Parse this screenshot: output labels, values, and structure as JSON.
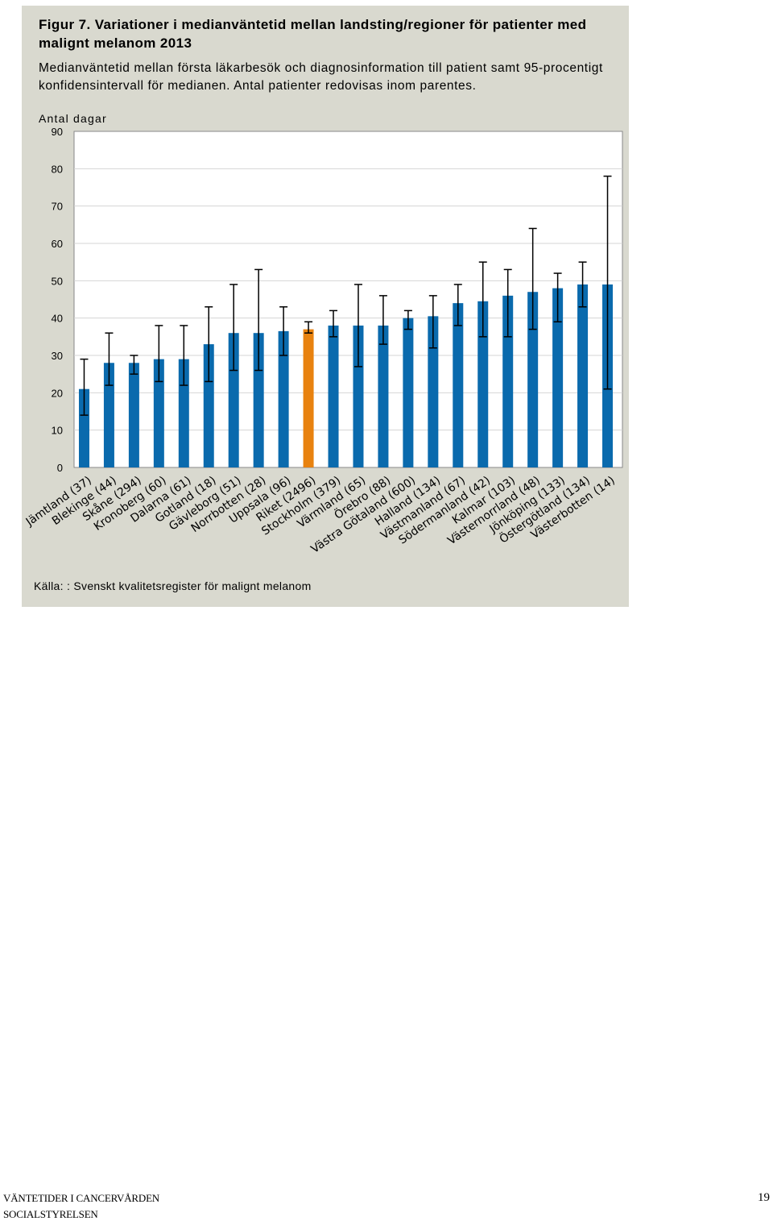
{
  "figure": {
    "title": "Figur 7. Variationer i medianväntetid mellan landsting/regioner för patienter med malignt melanom 2013",
    "subtitle": "Medianväntetid mellan första läkarbesök och diagnosinformation till patient samt 95-procentigt konfidensintervall för medianen. Antal patienter redovisas inom parentes.",
    "source": "Källa: : Svenskt kvalitetsregister för malignt melanom"
  },
  "chart_data": {
    "type": "bar",
    "title": "",
    "xlabel": "",
    "ylabel": "Antal dagar",
    "ylim": [
      0,
      90
    ],
    "yticks": [
      0,
      10,
      20,
      30,
      40,
      50,
      60,
      70,
      80,
      90
    ],
    "grid": true,
    "categories": [
      "Jämtland (37)",
      "Blekinge (44)",
      "Skåne (294)",
      "Kronoberg (60)",
      "Dalarna (61)",
      "Gotland (18)",
      "Gävleborg (51)",
      "Norrbotten (28)",
      "Uppsala (96)",
      "Riket (2496)",
      "Stockholm (379)",
      "Värmland (65)",
      "Örebro (88)",
      "Västra Götaland (600)",
      "Halland (134)",
      "Västmanland (67)",
      "Södermanland (42)",
      "Kalmar (103)",
      "Västernorrland (48)",
      "Jönköping (133)",
      "Östergötland (134)",
      "Västerbotten (14)"
    ],
    "values": [
      21,
      28,
      28,
      29,
      29,
      33,
      36,
      36,
      36.5,
      37,
      38,
      38,
      38,
      40,
      40.5,
      44,
      44.5,
      46,
      47,
      48,
      49,
      49
    ],
    "ci_low": [
      14,
      22,
      25,
      23,
      22,
      23,
      26,
      26,
      30,
      36,
      35,
      27,
      33,
      37,
      32,
      38,
      35,
      35,
      37,
      39,
      43,
      21
    ],
    "ci_high": [
      29,
      36,
      30,
      38,
      38,
      43,
      49,
      53,
      43,
      39,
      42,
      49,
      46,
      42,
      46,
      49,
      55,
      53,
      64,
      52,
      55,
      78
    ],
    "highlight_index": 9,
    "colors": {
      "bar": "#0a6aad",
      "highlight": "#e8820f",
      "errorbar": "#000000",
      "grid": "#d4d4d4",
      "plot_bg": "#ffffff"
    }
  },
  "footer": {
    "line1": "VÄNTETIDER I CANCERVÅRDEN",
    "line2": "SOCIALSTYRELSEN",
    "page": "19"
  }
}
